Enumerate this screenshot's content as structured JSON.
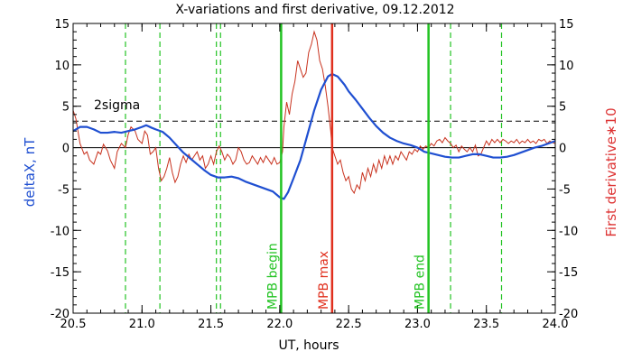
{
  "chart_data": {
    "type": "line",
    "title": "X-variations and first derivative, 09.12.2012",
    "xlabel": "UT, hours",
    "ylabel_left": "deltaX, nT",
    "ylabel_right": "First derivative∗10",
    "xlim": [
      20.5,
      24.0
    ],
    "ylim": [
      -20,
      15
    ],
    "x_ticks": [
      "20.5",
      "21.0",
      "21.5",
      "22.0",
      "22.5",
      "23.0",
      "23.5",
      "24.0"
    ],
    "y_ticks": [
      "15",
      "10",
      "5",
      "0",
      "-5",
      "-10",
      "-15",
      "-20"
    ],
    "colors": {
      "deltaX": "#1f4fd1",
      "derivative": "#c8321e",
      "green": "#22c322",
      "red": "#e0301e",
      "axis": "#000000"
    },
    "threshold": {
      "y": 3.2,
      "label": "2sigma"
    },
    "zero_line_y": 0,
    "dashed_green_x": [
      20.88,
      21.13,
      21.54,
      21.57,
      23.24,
      23.61
    ],
    "markers": [
      {
        "x": 22.01,
        "label": "MPB begin",
        "color": "green"
      },
      {
        "x": 22.38,
        "label": "MPB max",
        "color": "red"
      },
      {
        "x": 23.08,
        "label": "MPB end",
        "color": "green"
      }
    ],
    "series": [
      {
        "id": "deltaX",
        "color": "#1f4fd1",
        "points": [
          [
            20.5,
            2.0
          ],
          [
            20.55,
            2.5
          ],
          [
            20.6,
            2.5
          ],
          [
            20.65,
            2.2
          ],
          [
            20.7,
            1.8
          ],
          [
            20.75,
            1.8
          ],
          [
            20.8,
            1.9
          ],
          [
            20.85,
            1.8
          ],
          [
            20.9,
            2.0
          ],
          [
            20.95,
            2.2
          ],
          [
            21.0,
            2.5
          ],
          [
            21.03,
            2.7
          ],
          [
            21.07,
            2.4
          ],
          [
            21.1,
            2.2
          ],
          [
            21.15,
            1.9
          ],
          [
            21.2,
            1.2
          ],
          [
            21.25,
            0.3
          ],
          [
            21.3,
            -0.6
          ],
          [
            21.35,
            -1.3
          ],
          [
            21.4,
            -2.0
          ],
          [
            21.45,
            -2.7
          ],
          [
            21.5,
            -3.3
          ],
          [
            21.55,
            -3.6
          ],
          [
            21.6,
            -3.6
          ],
          [
            21.65,
            -3.5
          ],
          [
            21.7,
            -3.7
          ],
          [
            21.75,
            -4.1
          ],
          [
            21.8,
            -4.4
          ],
          [
            21.85,
            -4.7
          ],
          [
            21.9,
            -5.0
          ],
          [
            21.95,
            -5.3
          ],
          [
            22.0,
            -6.0
          ],
          [
            22.03,
            -6.2
          ],
          [
            22.06,
            -5.4
          ],
          [
            22.1,
            -3.7
          ],
          [
            22.15,
            -1.5
          ],
          [
            22.2,
            1.5
          ],
          [
            22.25,
            4.5
          ],
          [
            22.3,
            7.0
          ],
          [
            22.35,
            8.6
          ],
          [
            22.38,
            8.9
          ],
          [
            22.42,
            8.6
          ],
          [
            22.47,
            7.6
          ],
          [
            22.5,
            6.8
          ],
          [
            22.55,
            5.8
          ],
          [
            22.6,
            4.7
          ],
          [
            22.65,
            3.6
          ],
          [
            22.7,
            2.6
          ],
          [
            22.75,
            1.8
          ],
          [
            22.8,
            1.2
          ],
          [
            22.85,
            0.8
          ],
          [
            22.9,
            0.5
          ],
          [
            22.95,
            0.3
          ],
          [
            23.0,
            0.0
          ],
          [
            23.05,
            -0.5
          ],
          [
            23.1,
            -0.7
          ],
          [
            23.15,
            -0.9
          ],
          [
            23.2,
            -1.1
          ],
          [
            23.25,
            -1.2
          ],
          [
            23.3,
            -1.2
          ],
          [
            23.35,
            -1.0
          ],
          [
            23.4,
            -0.8
          ],
          [
            23.45,
            -0.8
          ],
          [
            23.5,
            -1.0
          ],
          [
            23.55,
            -1.2
          ],
          [
            23.6,
            -1.2
          ],
          [
            23.65,
            -1.1
          ],
          [
            23.7,
            -0.9
          ],
          [
            23.75,
            -0.6
          ],
          [
            23.8,
            -0.3
          ],
          [
            23.85,
            0.0
          ],
          [
            23.9,
            0.2
          ],
          [
            23.95,
            0.5
          ],
          [
            24.0,
            0.8
          ]
        ]
      },
      {
        "id": "derivative",
        "color": "#c8321e",
        "points": [
          [
            20.5,
            4.5
          ],
          [
            20.52,
            3.5
          ],
          [
            20.55,
            0.5
          ],
          [
            20.58,
            -0.8
          ],
          [
            20.6,
            -0.5
          ],
          [
            20.62,
            -1.5
          ],
          [
            20.65,
            -2.0
          ],
          [
            20.68,
            -0.5
          ],
          [
            20.7,
            -0.8
          ],
          [
            20.72,
            0.4
          ],
          [
            20.75,
            -0.4
          ],
          [
            20.77,
            -1.5
          ],
          [
            20.8,
            -2.5
          ],
          [
            20.82,
            -0.5
          ],
          [
            20.85,
            0.5
          ],
          [
            20.88,
            0.0
          ],
          [
            20.9,
            1.6
          ],
          [
            20.92,
            2.5
          ],
          [
            20.95,
            2.0
          ],
          [
            20.97,
            1.0
          ],
          [
            21.0,
            0.5
          ],
          [
            21.02,
            2.0
          ],
          [
            21.04,
            1.5
          ],
          [
            21.06,
            -0.8
          ],
          [
            21.08,
            -0.5
          ],
          [
            21.1,
            0.0
          ],
          [
            21.12,
            -2.5
          ],
          [
            21.14,
            -4.0
          ],
          [
            21.16,
            -3.5
          ],
          [
            21.18,
            -2.5
          ],
          [
            21.2,
            -1.2
          ],
          [
            21.22,
            -3.0
          ],
          [
            21.24,
            -4.2
          ],
          [
            21.26,
            -3.5
          ],
          [
            21.28,
            -2.0
          ],
          [
            21.3,
            -1.0
          ],
          [
            21.32,
            -1.8
          ],
          [
            21.34,
            -0.8
          ],
          [
            21.36,
            -1.5
          ],
          [
            21.38,
            -1.0
          ],
          [
            21.4,
            -0.5
          ],
          [
            21.42,
            -1.5
          ],
          [
            21.44,
            -1.0
          ],
          [
            21.46,
            -2.5
          ],
          [
            21.48,
            -2.0
          ],
          [
            21.5,
            -1.0
          ],
          [
            21.52,
            -2.0
          ],
          [
            21.54,
            -0.5
          ],
          [
            21.56,
            0.2
          ],
          [
            21.58,
            -0.5
          ],
          [
            21.6,
            -1.5
          ],
          [
            21.62,
            -0.8
          ],
          [
            21.64,
            -1.2
          ],
          [
            21.66,
            -2.0
          ],
          [
            21.68,
            -1.5
          ],
          [
            21.7,
            0.0
          ],
          [
            21.72,
            -0.5
          ],
          [
            21.74,
            -1.5
          ],
          [
            21.76,
            -2.0
          ],
          [
            21.78,
            -1.8
          ],
          [
            21.8,
            -1.0
          ],
          [
            21.82,
            -1.5
          ],
          [
            21.84,
            -2.0
          ],
          [
            21.86,
            -1.2
          ],
          [
            21.88,
            -1.8
          ],
          [
            21.9,
            -1.0
          ],
          [
            21.92,
            -1.5
          ],
          [
            21.94,
            -2.0
          ],
          [
            21.96,
            -1.2
          ],
          [
            21.98,
            -2.0
          ],
          [
            22.0,
            -1.8
          ],
          [
            22.02,
            -0.5
          ],
          [
            22.03,
            2.5
          ],
          [
            22.05,
            5.5
          ],
          [
            22.07,
            4.0
          ],
          [
            22.09,
            6.5
          ],
          [
            22.11,
            8.0
          ],
          [
            22.13,
            10.5
          ],
          [
            22.15,
            9.5
          ],
          [
            22.17,
            8.5
          ],
          [
            22.19,
            9.0
          ],
          [
            22.21,
            11.5
          ],
          [
            22.23,
            12.5
          ],
          [
            22.25,
            14.0
          ],
          [
            22.27,
            13.0
          ],
          [
            22.29,
            10.5
          ],
          [
            22.31,
            9.5
          ],
          [
            22.33,
            7.5
          ],
          [
            22.35,
            5.0
          ],
          [
            22.37,
            2.0
          ],
          [
            22.38,
            0.0
          ],
          [
            22.4,
            -1.0
          ],
          [
            22.42,
            -2.0
          ],
          [
            22.44,
            -1.5
          ],
          [
            22.46,
            -3.0
          ],
          [
            22.48,
            -4.0
          ],
          [
            22.5,
            -3.5
          ],
          [
            22.52,
            -5.0
          ],
          [
            22.54,
            -5.5
          ],
          [
            22.56,
            -4.5
          ],
          [
            22.58,
            -5.0
          ],
          [
            22.6,
            -3.0
          ],
          [
            22.62,
            -4.0
          ],
          [
            22.64,
            -2.5
          ],
          [
            22.66,
            -3.5
          ],
          [
            22.68,
            -2.0
          ],
          [
            22.7,
            -3.0
          ],
          [
            22.72,
            -1.5
          ],
          [
            22.74,
            -2.5
          ],
          [
            22.76,
            -1.0
          ],
          [
            22.78,
            -2.0
          ],
          [
            22.8,
            -1.0
          ],
          [
            22.82,
            -2.0
          ],
          [
            22.84,
            -1.0
          ],
          [
            22.86,
            -1.5
          ],
          [
            22.88,
            -0.5
          ],
          [
            22.9,
            -1.0
          ],
          [
            22.92,
            -1.5
          ],
          [
            22.94,
            -0.5
          ],
          [
            22.96,
            -0.8
          ],
          [
            22.98,
            -0.2
          ],
          [
            23.0,
            -0.5
          ],
          [
            23.02,
            0.2
          ],
          [
            23.04,
            -0.2
          ],
          [
            23.06,
            0.2
          ],
          [
            23.08,
            0.0
          ],
          [
            23.1,
            0.5
          ],
          [
            23.12,
            0.2
          ],
          [
            23.14,
            0.8
          ],
          [
            23.16,
            1.0
          ],
          [
            23.18,
            0.6
          ],
          [
            23.2,
            1.2
          ],
          [
            23.22,
            0.8
          ],
          [
            23.24,
            0.5
          ],
          [
            23.26,
            0.0
          ],
          [
            23.28,
            0.3
          ],
          [
            23.3,
            -0.5
          ],
          [
            23.32,
            0.2
          ],
          [
            23.34,
            -0.2
          ],
          [
            23.36,
            -0.5
          ],
          [
            23.38,
            0.0
          ],
          [
            23.4,
            -0.5
          ],
          [
            23.42,
            0.3
          ],
          [
            23.44,
            -1.0
          ],
          [
            23.46,
            -0.8
          ],
          [
            23.48,
            0.0
          ],
          [
            23.5,
            0.8
          ],
          [
            23.52,
            0.3
          ],
          [
            23.54,
            1.0
          ],
          [
            23.56,
            0.6
          ],
          [
            23.58,
            1.0
          ],
          [
            23.6,
            0.6
          ],
          [
            23.62,
            1.0
          ],
          [
            23.64,
            0.8
          ],
          [
            23.66,
            0.5
          ],
          [
            23.68,
            0.8
          ],
          [
            23.7,
            0.6
          ],
          [
            23.72,
            1.0
          ],
          [
            23.74,
            0.5
          ],
          [
            23.76,
            0.8
          ],
          [
            23.78,
            0.6
          ],
          [
            23.8,
            1.0
          ],
          [
            23.82,
            0.6
          ],
          [
            23.84,
            0.8
          ],
          [
            23.86,
            0.5
          ],
          [
            23.88,
            1.0
          ],
          [
            23.9,
            0.8
          ],
          [
            23.92,
            1.0
          ],
          [
            23.94,
            0.5
          ],
          [
            23.96,
            0.8
          ],
          [
            23.98,
            0.6
          ],
          [
            24.0,
            0.5
          ]
        ]
      }
    ]
  }
}
